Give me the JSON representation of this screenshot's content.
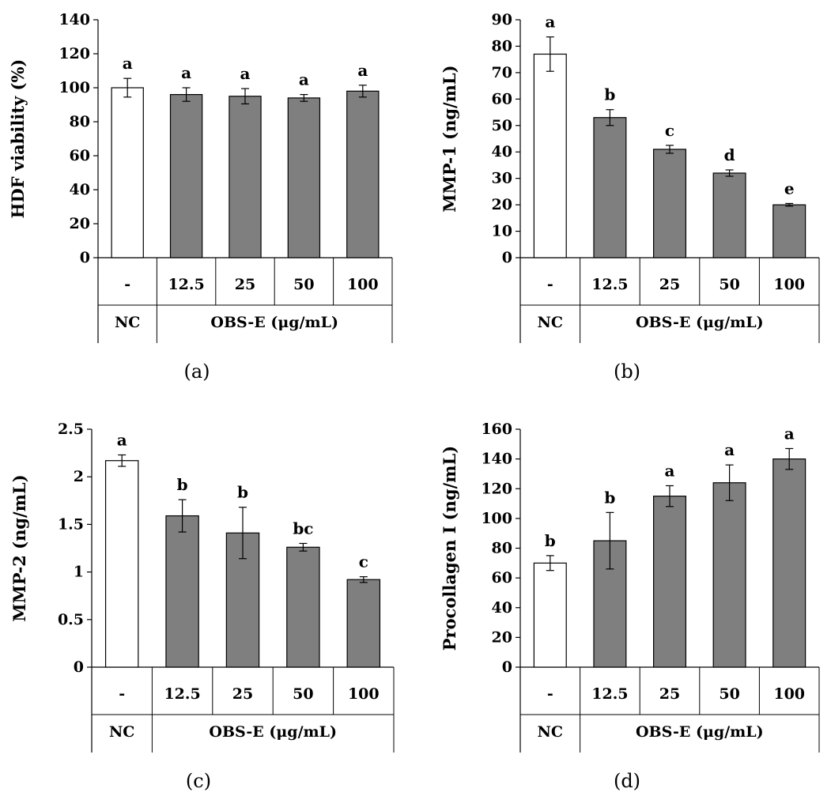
{
  "chart_data": [
    {
      "type": "bar",
      "panel_label": "(a)",
      "ylabel": "HDF viability (%)",
      "ylim": [
        0,
        140
      ],
      "yticks": [
        0,
        20,
        40,
        60,
        80,
        100,
        120,
        140
      ],
      "categories": [
        "-",
        "12.5",
        "25",
        "50",
        "100"
      ],
      "groups": [
        {
          "label": "NC",
          "span": 1
        },
        {
          "label": "OBS-E (μg/mL)",
          "span": 4
        }
      ],
      "series": [
        {
          "name": "HDF viability",
          "values": [
            100,
            96,
            95,
            94,
            98
          ]
        }
      ],
      "errors": [
        5.5,
        4,
        4.5,
        2,
        3.5
      ],
      "bar_fills": [
        "#ffffff",
        "#7f7f7f",
        "#7f7f7f",
        "#7f7f7f",
        "#7f7f7f"
      ],
      "significance": [
        "a",
        "a",
        "a",
        "a",
        "a"
      ]
    },
    {
      "type": "bar",
      "panel_label": "(b)",
      "ylabel": "MMP-1 (ng/mL)",
      "ylim": [
        0,
        90
      ],
      "yticks": [
        0,
        10,
        20,
        30,
        40,
        50,
        60,
        70,
        80,
        90
      ],
      "categories": [
        "-",
        "12.5",
        "25",
        "50",
        "100"
      ],
      "groups": [
        {
          "label": "NC",
          "span": 1
        },
        {
          "label": "OBS-E (μg/mL)",
          "span": 4
        }
      ],
      "series": [
        {
          "name": "MMP-1",
          "values": [
            77,
            53,
            41,
            32,
            20
          ]
        }
      ],
      "errors": [
        6.5,
        3,
        1.5,
        1.2,
        0.5
      ],
      "bar_fills": [
        "#ffffff",
        "#7f7f7f",
        "#7f7f7f",
        "#7f7f7f",
        "#7f7f7f"
      ],
      "significance": [
        "a",
        "b",
        "c",
        "d",
        "e"
      ]
    },
    {
      "type": "bar",
      "panel_label": "(c)",
      "ylabel": "MMP-2 (ng/mL)",
      "ylim": [
        0,
        2.5
      ],
      "yticks": [
        0,
        0.5,
        1,
        1.5,
        2,
        2.5
      ],
      "categories": [
        "-",
        "12.5",
        "25",
        "50",
        "100"
      ],
      "groups": [
        {
          "label": "NC",
          "span": 1
        },
        {
          "label": "OBS-E (μg/mL)",
          "span": 4
        }
      ],
      "series": [
        {
          "name": "MMP-2",
          "values": [
            2.17,
            1.59,
            1.41,
            1.26,
            0.92
          ]
        }
      ],
      "errors": [
        0.06,
        0.17,
        0.27,
        0.04,
        0.03
      ],
      "bar_fills": [
        "#ffffff",
        "#7f7f7f",
        "#7f7f7f",
        "#7f7f7f",
        "#7f7f7f"
      ],
      "significance": [
        "a",
        "b",
        "b",
        "bc",
        "c"
      ]
    },
    {
      "type": "bar",
      "panel_label": "(d)",
      "ylabel": "Procollagen I (ng/mL)",
      "ylim": [
        0,
        160
      ],
      "yticks": [
        0,
        20,
        40,
        60,
        80,
        100,
        120,
        140,
        160
      ],
      "categories": [
        "-",
        "12.5",
        "25",
        "50",
        "100"
      ],
      "groups": [
        {
          "label": "NC",
          "span": 1
        },
        {
          "label": "OBS-E (μg/mL)",
          "span": 4
        }
      ],
      "series": [
        {
          "name": "Procollagen I",
          "values": [
            70,
            85,
            115,
            124,
            140
          ]
        }
      ],
      "errors": [
        5,
        19,
        7,
        12,
        7
      ],
      "bar_fills": [
        "#ffffff",
        "#7f7f7f",
        "#7f7f7f",
        "#7f7f7f",
        "#7f7f7f"
      ],
      "significance": [
        "b",
        "b",
        "a",
        "a",
        "a"
      ]
    }
  ]
}
